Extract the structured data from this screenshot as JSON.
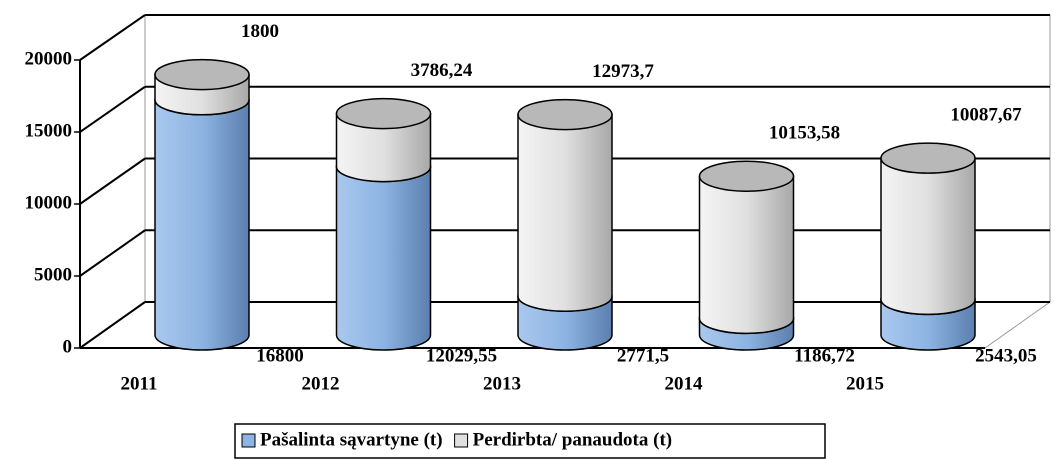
{
  "chart_data": {
    "type": "bar",
    "stacked": true,
    "categories": [
      "2011",
      "2012",
      "2013",
      "2014",
      "2015"
    ],
    "series": [
      {
        "name": "Pašalinta sąvartyne (t)",
        "color": "#8db4e2",
        "values": [
          16800,
          12029.55,
          2771.5,
          1186.72,
          2543.05
        ],
        "value_labels": [
          "16800",
          "12029,55",
          "2771,5",
          "1186,72",
          "2543,05"
        ]
      },
      {
        "name": "Perdirbta/ panaudota (t)",
        "color": "#e0e0e0",
        "values": [
          1800,
          3786.24,
          12973.7,
          10153.58,
          10087.67
        ],
        "value_labels": [
          "1800",
          "3786,24",
          "12973,7",
          "10153,58",
          "10087,67"
        ]
      }
    ],
    "ylim": [
      0,
      20000
    ],
    "yticks": [
      0,
      5000,
      10000,
      15000,
      20000
    ],
    "grid": true
  }
}
